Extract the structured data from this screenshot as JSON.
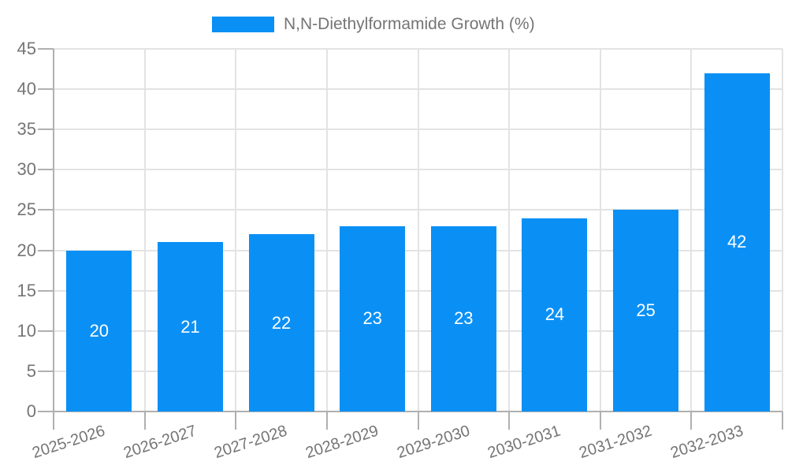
{
  "legend": {
    "label": "N,N-Diethylformamide Growth (%)"
  },
  "chart_data": {
    "type": "bar",
    "title": "N,N-Diethylformamide Growth (%)",
    "xlabel": "",
    "ylabel": "",
    "categories": [
      "2025-2026",
      "2026-2027",
      "2027-2028",
      "2028-2029",
      "2029-2030",
      "2030-2031",
      "2031-2032",
      "2032-2033"
    ],
    "values": [
      20,
      21,
      22,
      23,
      23,
      24,
      25,
      42
    ],
    "bar_value_labels_shown": true,
    "ylim": [
      0,
      45
    ],
    "ytick_step": 5,
    "yticks": [
      0,
      5,
      10,
      15,
      20,
      25,
      30,
      35,
      40,
      45
    ],
    "grid": true,
    "legend_position": "top-center",
    "colors": {
      "bar": "#0a90f5",
      "axis_text": "#757575",
      "grid_line": "#e3e3e3",
      "axis_line": "#b0b0b0",
      "bar_label_text": "#ffffff",
      "background": "#ffffff"
    }
  }
}
